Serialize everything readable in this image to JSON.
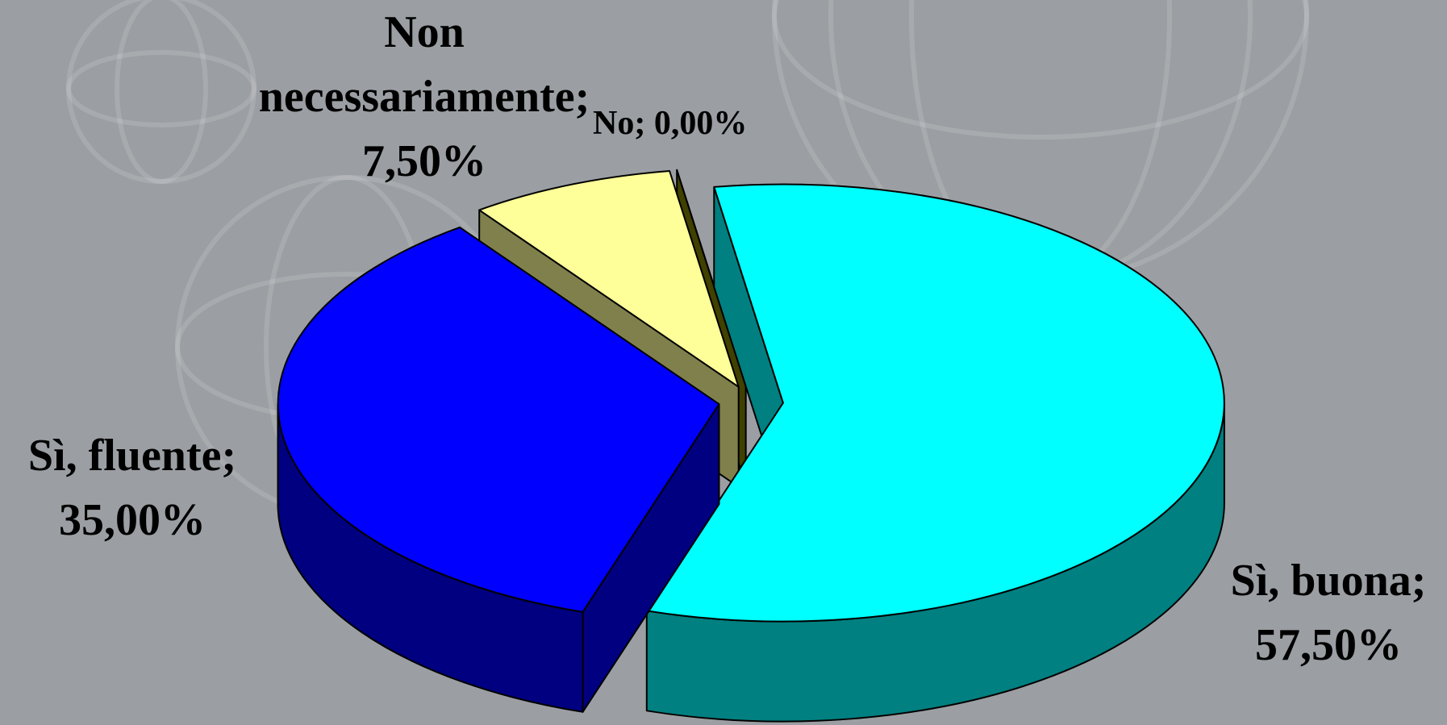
{
  "chart_data": {
    "type": "pie3d",
    "categories": [
      "Sì, buona",
      "Sì, fluente",
      "Non necessariamente",
      "No"
    ],
    "values": [
      57.5,
      35,
      7.5,
      0
    ],
    "value_labels": [
      "57,50%",
      "35,00%",
      "7,50%",
      "0,00%"
    ],
    "label_separator": ";",
    "colors": [
      "#00ffff",
      "#0000ff",
      "#ffff99",
      "#808000"
    ]
  }
}
